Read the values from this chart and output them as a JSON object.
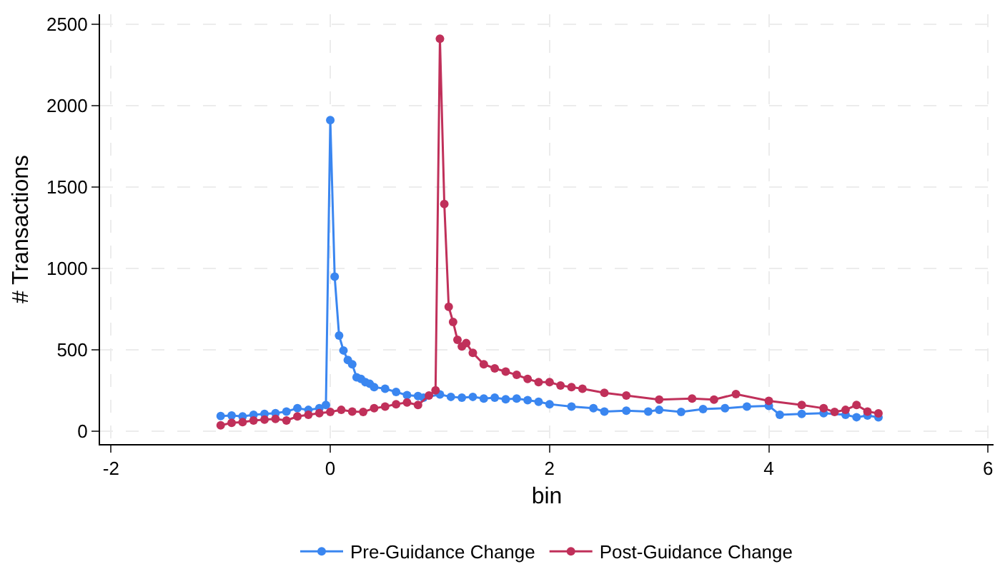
{
  "chart_data": {
    "type": "line",
    "xlabel": "bin",
    "ylabel": "# Transactions",
    "xlim": [
      -2.1,
      6.05
    ],
    "ylim": [
      -80,
      2560
    ],
    "xticks": [
      -2,
      0,
      2,
      4,
      6
    ],
    "yticks": [
      0,
      500,
      1000,
      1500,
      2000,
      2500
    ],
    "grid": true,
    "legend": "bottom",
    "marker": "circle",
    "line_style": "solid",
    "series": [
      {
        "name": "Pre-Guidance Change",
        "color": "#3a86f0",
        "x": [
          -1,
          -0.9,
          -0.8,
          -0.7,
          -0.6,
          -0.5,
          -0.4,
          -0.3,
          -0.2,
          -0.1,
          -0.04,
          0,
          0.04,
          0.08,
          0.12,
          0.16,
          0.2,
          0.24,
          0.28,
          0.32,
          0.36,
          0.4,
          0.5,
          0.6,
          0.7,
          0.8,
          0.85,
          1,
          1.1,
          1.2,
          1.3,
          1.4,
          1.5,
          1.6,
          1.7,
          1.8,
          1.9,
          2,
          2.2,
          2.4,
          2.5,
          2.7,
          2.9,
          3,
          3.2,
          3.4,
          3.6,
          3.8,
          4,
          4.1,
          4.3,
          4.5,
          4.7,
          4.8,
          4.9,
          5
        ],
        "values": [
          92,
          95,
          90,
          100,
          105,
          110,
          120,
          140,
          130,
          140,
          160,
          1910,
          948,
          587,
          495,
          436,
          410,
          330,
          320,
          300,
          290,
          270,
          260,
          240,
          220,
          215,
          205,
          225,
          210,
          205,
          210,
          200,
          205,
          195,
          200,
          190,
          180,
          165,
          150,
          140,
          120,
          125,
          120,
          130,
          117,
          135,
          140,
          150,
          155,
          100,
          105,
          110,
          100,
          85,
          95,
          84
        ]
      },
      {
        "name": "Post-Guidance Change",
        "color": "#c0305a",
        "x": [
          -1,
          -0.9,
          -0.8,
          -0.7,
          -0.6,
          -0.5,
          -0.4,
          -0.3,
          -0.2,
          -0.1,
          0,
          0.1,
          0.2,
          0.3,
          0.4,
          0.5,
          0.6,
          0.7,
          0.8,
          0.9,
          0.96,
          1,
          1.04,
          1.08,
          1.12,
          1.16,
          1.2,
          1.24,
          1.3,
          1.4,
          1.5,
          1.6,
          1.7,
          1.8,
          1.9,
          2,
          2.1,
          2.2,
          2.3,
          2.5,
          2.7,
          3,
          3.3,
          3.5,
          3.7,
          4,
          4.3,
          4.5,
          4.6,
          4.7,
          4.8,
          4.9,
          5
        ],
        "values": [
          35,
          50,
          55,
          65,
          70,
          75,
          65,
          90,
          100,
          110,
          117,
          130,
          120,
          117,
          140,
          150,
          165,
          175,
          160,
          218,
          250,
          2410,
          1395,
          763,
          670,
          560,
          520,
          540,
          480,
          410,
          385,
          365,
          345,
          320,
          300,
          300,
          280,
          270,
          260,
          235,
          218,
          193,
          200,
          193,
          227,
          185,
          160,
          140,
          117,
          130,
          160,
          120,
          109
        ]
      }
    ]
  }
}
